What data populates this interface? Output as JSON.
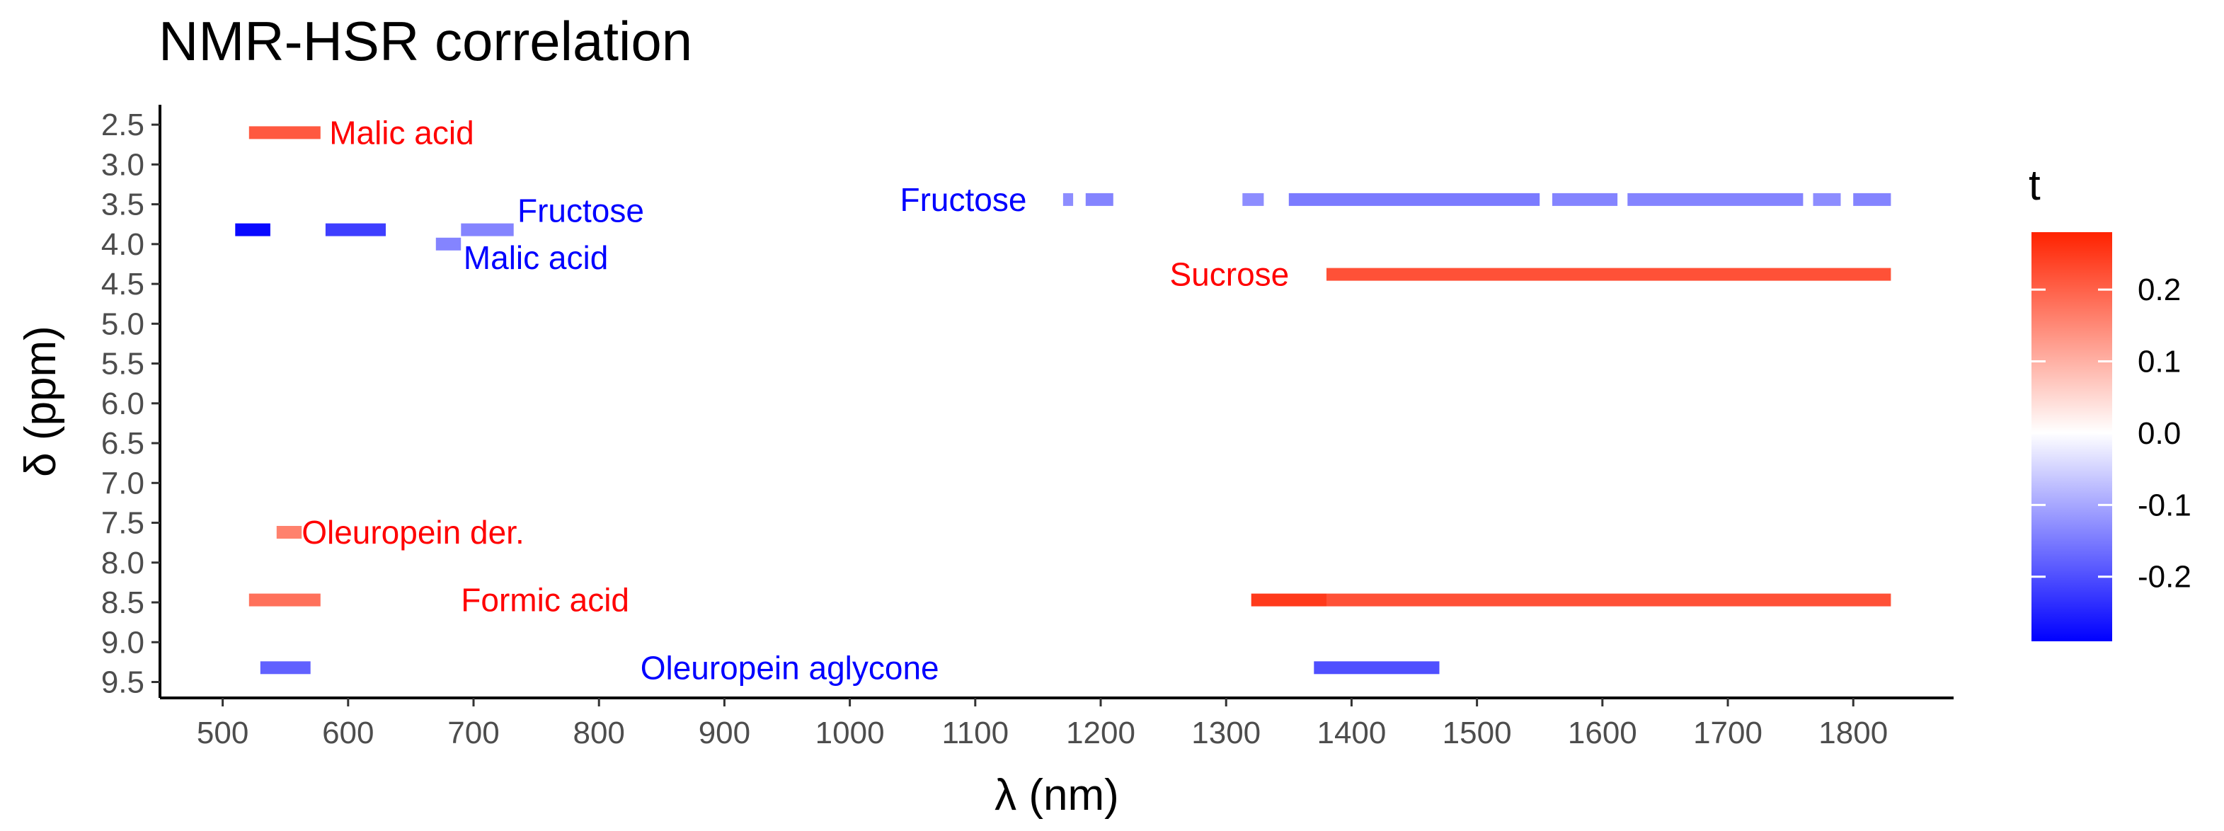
{
  "chart_data": {
    "type": "heatmap",
    "title": "NMR-HSR correlation",
    "xlabel": "λ (nm)",
    "ylabel": "δ (ppm)",
    "xlim": [
      450,
      1880
    ],
    "ylim": [
      9.7,
      2.25
    ],
    "y_reversed": true,
    "x_ticks": [
      500,
      600,
      700,
      800,
      900,
      1000,
      1100,
      1200,
      1300,
      1400,
      1500,
      1600,
      1700,
      1800
    ],
    "y_ticks": [
      2.5,
      3.0,
      3.5,
      4.0,
      4.5,
      5.0,
      5.5,
      6.0,
      6.5,
      7.0,
      7.5,
      8.0,
      8.5,
      9.0,
      9.5
    ],
    "y_tick_labels": [
      "2.5",
      "3.0",
      "3.5",
      "4.0",
      "4.5",
      "5.0",
      "5.5",
      "6.0",
      "6.5",
      "7.0",
      "7.5",
      "8.0",
      "8.5",
      "9.0",
      "9.5"
    ],
    "color_scale": {
      "title": "t",
      "min": -0.29,
      "max": 0.28,
      "low_color": "#0000ff",
      "mid_color": "#ffffff",
      "high_color": "#ff2200",
      "ticks": [
        0.2,
        0.1,
        0.0,
        -0.1,
        -0.2
      ],
      "tick_labels": [
        "0.2",
        "0.1",
        "0.0",
        "-0.1",
        "-0.2"
      ]
    },
    "segments": [
      {
        "x_start": 521,
        "x_end": 578,
        "y": 2.6,
        "t": 0.21
      },
      {
        "x_start": 510,
        "x_end": 538,
        "y": 3.82,
        "t": -0.28
      },
      {
        "x_start": 582,
        "x_end": 630,
        "y": 3.82,
        "t": -0.22
      },
      {
        "x_start": 670,
        "x_end": 690,
        "y": 4.0,
        "t": -0.14
      },
      {
        "x_start": 690,
        "x_end": 732,
        "y": 3.82,
        "t": -0.14
      },
      {
        "x_start": 543,
        "x_end": 563,
        "y": 7.62,
        "t": 0.16
      },
      {
        "x_start": 521,
        "x_end": 578,
        "y": 8.47,
        "t": 0.18
      },
      {
        "x_start": 530,
        "x_end": 570,
        "y": 9.32,
        "t": -0.18
      },
      {
        "x_start": 1170,
        "x_end": 1178,
        "y": 3.44,
        "t": -0.13
      },
      {
        "x_start": 1188,
        "x_end": 1210,
        "y": 3.44,
        "t": -0.14
      },
      {
        "x_start": 1313,
        "x_end": 1330,
        "y": 3.44,
        "t": -0.13
      },
      {
        "x_start": 1350,
        "x_end": 1550,
        "y": 3.44,
        "t": -0.15
      },
      {
        "x_start": 1560,
        "x_end": 1612,
        "y": 3.44,
        "t": -0.14
      },
      {
        "x_start": 1620,
        "x_end": 1760,
        "y": 3.44,
        "t": -0.14
      },
      {
        "x_start": 1768,
        "x_end": 1790,
        "y": 3.44,
        "t": -0.13
      },
      {
        "x_start": 1800,
        "x_end": 1830,
        "y": 3.44,
        "t": -0.14
      },
      {
        "x_start": 1380,
        "x_end": 1830,
        "y": 4.38,
        "t": 0.22
      },
      {
        "x_start": 1320,
        "x_end": 1380,
        "y": 8.47,
        "t": 0.25
      },
      {
        "x_start": 1380,
        "x_end": 1830,
        "y": 8.47,
        "t": 0.22
      },
      {
        "x_start": 1370,
        "x_end": 1470,
        "y": 9.32,
        "t": -0.2
      }
    ],
    "annotations": [
      {
        "text": "Malic acid",
        "x": 585,
        "y": 2.6,
        "color": "#ff0000"
      },
      {
        "text": "Fructose",
        "x": 735,
        "y": 3.58,
        "color": "#0000ff"
      },
      {
        "text": "Malic acid",
        "x": 692,
        "y": 4.17,
        "color": "#0000ff"
      },
      {
        "text": "Oleuropein der.",
        "x": 563,
        "y": 7.62,
        "color": "#ff0000"
      },
      {
        "text": "Formic acid",
        "x": 690,
        "y": 8.47,
        "color": "#ff0000"
      },
      {
        "text": "Oleuropein aglycone",
        "x": 833,
        "y": 9.32,
        "color": "#0000ff"
      },
      {
        "text": "Fructose",
        "x": 1040,
        "y": 3.44,
        "color": "#0000ff"
      },
      {
        "text": "Sucrose",
        "x": 1255,
        "y": 4.38,
        "color": "#ff0000"
      }
    ]
  }
}
